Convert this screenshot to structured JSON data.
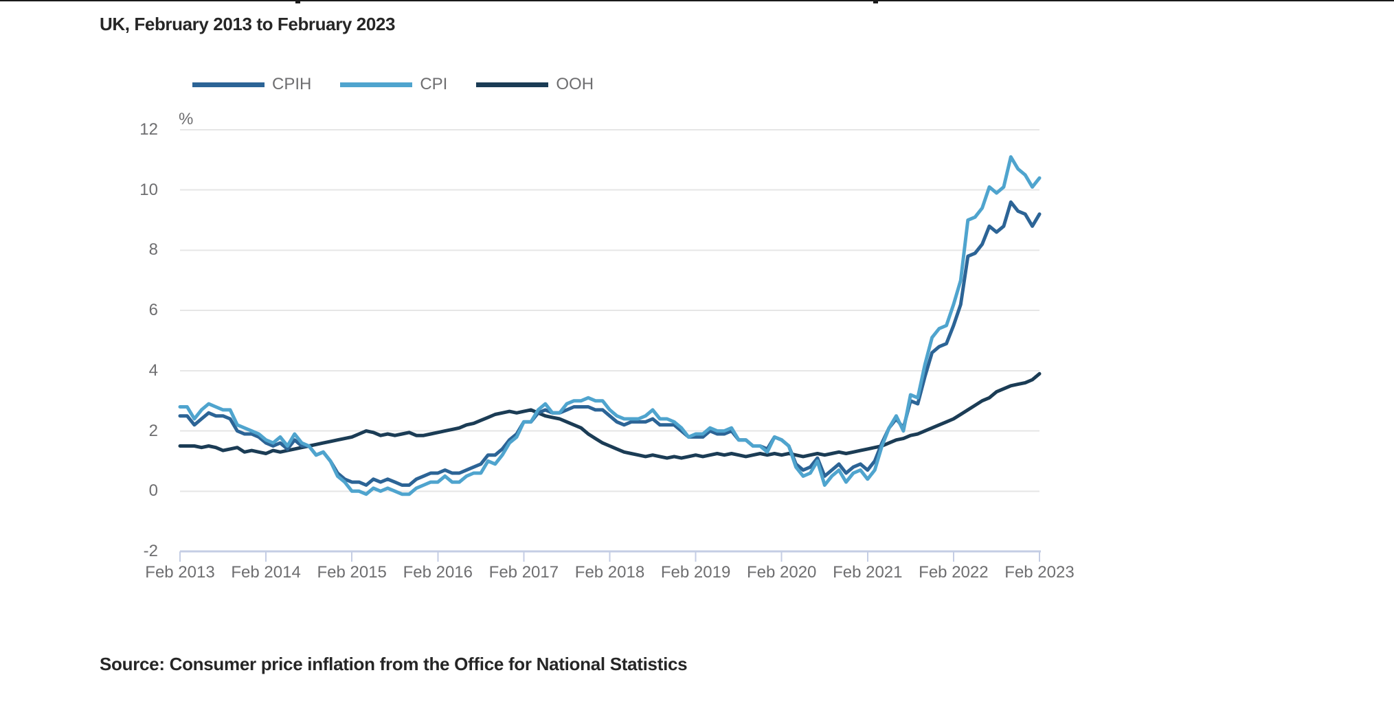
{
  "page": {
    "source_caption": "Source: Consumer price inflation from the Office for National Statistics"
  },
  "chart_data": {
    "type": "line",
    "title": "UK, February 2013 to February 2023",
    "unit_label": "%",
    "x_start": "Feb 2013",
    "x_end": "Feb 2023",
    "x_frequency": "monthly",
    "x_tick_labels": [
      "Feb 2013",
      "Feb 2014",
      "Feb 2015",
      "Feb 2016",
      "Feb 2017",
      "Feb 2018",
      "Feb 2019",
      "Feb 2020",
      "Feb 2021",
      "Feb 2022",
      "Feb 2023"
    ],
    "y_ticks": [
      12,
      10,
      8,
      6,
      4,
      2,
      0,
      -2
    ],
    "ylim": [
      -2,
      12
    ],
    "grid": true,
    "legend_position": "top",
    "colors": {
      "gridline": "#E6E6E6",
      "axis_line": "#C4CDE4",
      "tick": "#C4CDE4",
      "axis_text": "#6E6E70",
      "title_text": "#262626"
    },
    "series": [
      {
        "name": "CPIH",
        "color": "#2C6496",
        "values": [
          2.5,
          2.5,
          2.2,
          2.4,
          2.6,
          2.5,
          2.5,
          2.4,
          2.0,
          1.9,
          1.9,
          1.8,
          1.6,
          1.5,
          1.6,
          1.4,
          1.7,
          1.5,
          1.5,
          1.2,
          1.3,
          1.0,
          0.6,
          0.4,
          0.3,
          0.3,
          0.2,
          0.4,
          0.3,
          0.4,
          0.3,
          0.2,
          0.2,
          0.4,
          0.5,
          0.6,
          0.6,
          0.7,
          0.6,
          0.6,
          0.7,
          0.8,
          0.9,
          1.2,
          1.2,
          1.4,
          1.7,
          1.9,
          2.3,
          2.3,
          2.6,
          2.7,
          2.6,
          2.6,
          2.7,
          2.8,
          2.8,
          2.8,
          2.7,
          2.7,
          2.5,
          2.3,
          2.2,
          2.3,
          2.3,
          2.3,
          2.4,
          2.2,
          2.2,
          2.2,
          2.0,
          1.8,
          1.8,
          1.8,
          2.0,
          1.9,
          1.9,
          2.0,
          1.7,
          1.7,
          1.5,
          1.5,
          1.4,
          1.8,
          1.7,
          1.5,
          0.9,
          0.7,
          0.8,
          1.1,
          0.5,
          0.7,
          0.9,
          0.6,
          0.8,
          0.9,
          0.7,
          1.0,
          1.6,
          2.1,
          2.4,
          2.1,
          3.0,
          2.9,
          3.8,
          4.6,
          4.8,
          4.9,
          5.5,
          6.2,
          7.8,
          7.9,
          8.2,
          8.8,
          8.6,
          8.8,
          9.6,
          9.3,
          9.2,
          8.8,
          9.2
        ]
      },
      {
        "name": "CPI",
        "color": "#4FA4CE",
        "values": [
          2.8,
          2.8,
          2.4,
          2.7,
          2.9,
          2.8,
          2.7,
          2.7,
          2.2,
          2.1,
          2.0,
          1.9,
          1.7,
          1.6,
          1.8,
          1.5,
          1.9,
          1.6,
          1.5,
          1.2,
          1.3,
          1.0,
          0.5,
          0.3,
          0.0,
          0.0,
          -0.1,
          0.1,
          0.0,
          0.1,
          0.0,
          -0.1,
          -0.1,
          0.1,
          0.2,
          0.3,
          0.3,
          0.5,
          0.3,
          0.3,
          0.5,
          0.6,
          0.6,
          1.0,
          0.9,
          1.2,
          1.6,
          1.8,
          2.3,
          2.3,
          2.7,
          2.9,
          2.6,
          2.6,
          2.9,
          3.0,
          3.0,
          3.1,
          3.0,
          3.0,
          2.7,
          2.5,
          2.4,
          2.4,
          2.4,
          2.5,
          2.7,
          2.4,
          2.4,
          2.3,
          2.1,
          1.8,
          1.9,
          1.9,
          2.1,
          2.0,
          2.0,
          2.1,
          1.7,
          1.7,
          1.5,
          1.5,
          1.3,
          1.8,
          1.7,
          1.5,
          0.8,
          0.5,
          0.6,
          1.0,
          0.2,
          0.5,
          0.7,
          0.3,
          0.6,
          0.7,
          0.4,
          0.7,
          1.5,
          2.1,
          2.5,
          2.0,
          3.2,
          3.1,
          4.2,
          5.1,
          5.4,
          5.5,
          6.2,
          7.0,
          9.0,
          9.1,
          9.4,
          10.1,
          9.9,
          10.1,
          11.1,
          10.7,
          10.5,
          10.1,
          10.4
        ]
      },
      {
        "name": "OOH",
        "color": "#1B3C55",
        "values": [
          1.5,
          1.5,
          1.5,
          1.45,
          1.5,
          1.45,
          1.35,
          1.4,
          1.45,
          1.3,
          1.35,
          1.3,
          1.25,
          1.35,
          1.3,
          1.35,
          1.4,
          1.45,
          1.5,
          1.55,
          1.6,
          1.65,
          1.7,
          1.75,
          1.8,
          1.9,
          2.0,
          1.95,
          1.85,
          1.9,
          1.85,
          1.9,
          1.95,
          1.85,
          1.85,
          1.9,
          1.95,
          2.0,
          2.05,
          2.1,
          2.2,
          2.25,
          2.35,
          2.45,
          2.55,
          2.6,
          2.65,
          2.6,
          2.65,
          2.7,
          2.6,
          2.5,
          2.45,
          2.4,
          2.3,
          2.2,
          2.1,
          1.9,
          1.75,
          1.6,
          1.5,
          1.4,
          1.3,
          1.25,
          1.2,
          1.15,
          1.2,
          1.15,
          1.1,
          1.15,
          1.1,
          1.15,
          1.2,
          1.15,
          1.2,
          1.25,
          1.2,
          1.25,
          1.2,
          1.15,
          1.2,
          1.25,
          1.2,
          1.25,
          1.2,
          1.25,
          1.2,
          1.15,
          1.2,
          1.25,
          1.2,
          1.25,
          1.3,
          1.25,
          1.3,
          1.35,
          1.4,
          1.45,
          1.5,
          1.6,
          1.7,
          1.75,
          1.85,
          1.9,
          2.0,
          2.1,
          2.2,
          2.3,
          2.4,
          2.55,
          2.7,
          2.85,
          3.0,
          3.1,
          3.3,
          3.4,
          3.5,
          3.55,
          3.6,
          3.7,
          3.9
        ]
      }
    ]
  }
}
